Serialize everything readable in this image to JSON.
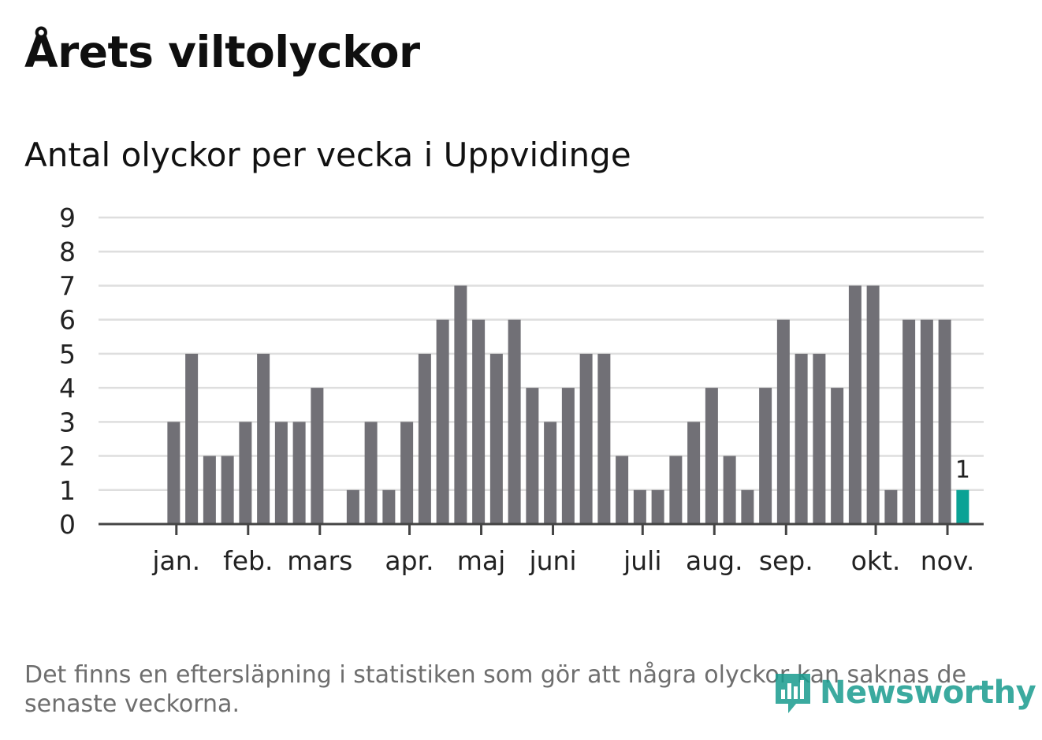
{
  "header": {
    "title": "Årets viltolyckor",
    "subtitle": "Antal olyckor per vecka i Uppvidinge"
  },
  "footer": {
    "note": "Det finns en eftersläpning i statistiken som gör att några olyckor kan saknas de senaste veckorna.",
    "logo_text": "Newsworthy"
  },
  "colors": {
    "bar": "#717076",
    "highlight": "#0aa295",
    "grid": "#dedede",
    "axis": "#444444",
    "brand": "#1a9c8f"
  },
  "chart_data": {
    "type": "bar",
    "title": "Antal olyckor per vecka i Uppvidinge",
    "xlabel": "",
    "ylabel": "",
    "ylim": [
      0,
      9
    ],
    "yticks": [
      "0",
      "1",
      "2",
      "3",
      "4",
      "5",
      "6",
      "7",
      "8",
      "9"
    ],
    "grid": true,
    "week_slots": 48,
    "values": [
      0,
      0,
      3,
      5,
      2,
      2,
      3,
      5,
      3,
      3,
      4,
      0,
      1,
      3,
      1,
      3,
      5,
      6,
      7,
      6,
      5,
      6,
      4,
      3,
      4,
      5,
      5,
      2,
      1,
      1,
      2,
      3,
      4,
      2,
      1,
      4,
      6,
      5,
      5,
      4,
      7,
      7,
      1,
      6,
      6,
      6,
      1
    ],
    "highlight_index": 46,
    "highlight_label": "1",
    "month_ticks": [
      {
        "label": "jan.",
        "week": 2.65
      },
      {
        "label": "feb.",
        "week": 6.65
      },
      {
        "label": "mars",
        "week": 10.65
      },
      {
        "label": "apr.",
        "week": 15.65
      },
      {
        "label": "maj",
        "week": 19.65
      },
      {
        "label": "juni",
        "week": 23.65
      },
      {
        "label": "juli",
        "week": 28.65
      },
      {
        "label": "aug.",
        "week": 32.65
      },
      {
        "label": "sep.",
        "week": 36.65
      },
      {
        "label": "okt.",
        "week": 41.65
      },
      {
        "label": "nov.",
        "week": 45.65
      }
    ]
  }
}
